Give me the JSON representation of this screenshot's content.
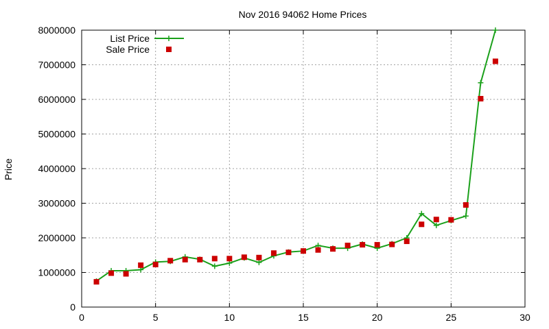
{
  "chart_data": {
    "type": "line",
    "title": "Nov 2016 94062 Home Prices",
    "xlabel": "",
    "ylabel": "Price",
    "xlim": [
      0,
      30
    ],
    "ylim": [
      0,
      8000000
    ],
    "xticks": [
      0,
      5,
      10,
      15,
      20,
      25,
      30
    ],
    "yticks": [
      0,
      1000000,
      2000000,
      3000000,
      4000000,
      5000000,
      6000000,
      7000000,
      8000000
    ],
    "grid": true,
    "legend_position": "top-left",
    "x": [
      1,
      2,
      3,
      4,
      5,
      6,
      7,
      8,
      9,
      10,
      11,
      12,
      13,
      14,
      15,
      16,
      17,
      18,
      19,
      20,
      21,
      22,
      23,
      24,
      25,
      26,
      27,
      28
    ],
    "series": [
      {
        "name": "List Price",
        "style": "line-points",
        "marker": "plus",
        "color": "#1aa01a",
        "values": [
          750000,
          1050000,
          1050000,
          1080000,
          1300000,
          1320000,
          1450000,
          1380000,
          1180000,
          1270000,
          1420000,
          1290000,
          1480000,
          1590000,
          1620000,
          1780000,
          1700000,
          1700000,
          1820000,
          1700000,
          1830000,
          2000000,
          2700000,
          2360000,
          2500000,
          2630000,
          6480000,
          8000000
        ]
      },
      {
        "name": "Sale Price",
        "style": "points",
        "marker": "square",
        "color": "#cc0000",
        "values": [
          730000,
          980000,
          960000,
          1210000,
          1230000,
          1340000,
          1370000,
          1370000,
          1400000,
          1400000,
          1440000,
          1430000,
          1560000,
          1580000,
          1620000,
          1650000,
          1680000,
          1780000,
          1800000,
          1800000,
          1810000,
          1900000,
          2390000,
          2530000,
          2520000,
          2950000,
          6020000,
          7100000
        ]
      }
    ]
  }
}
